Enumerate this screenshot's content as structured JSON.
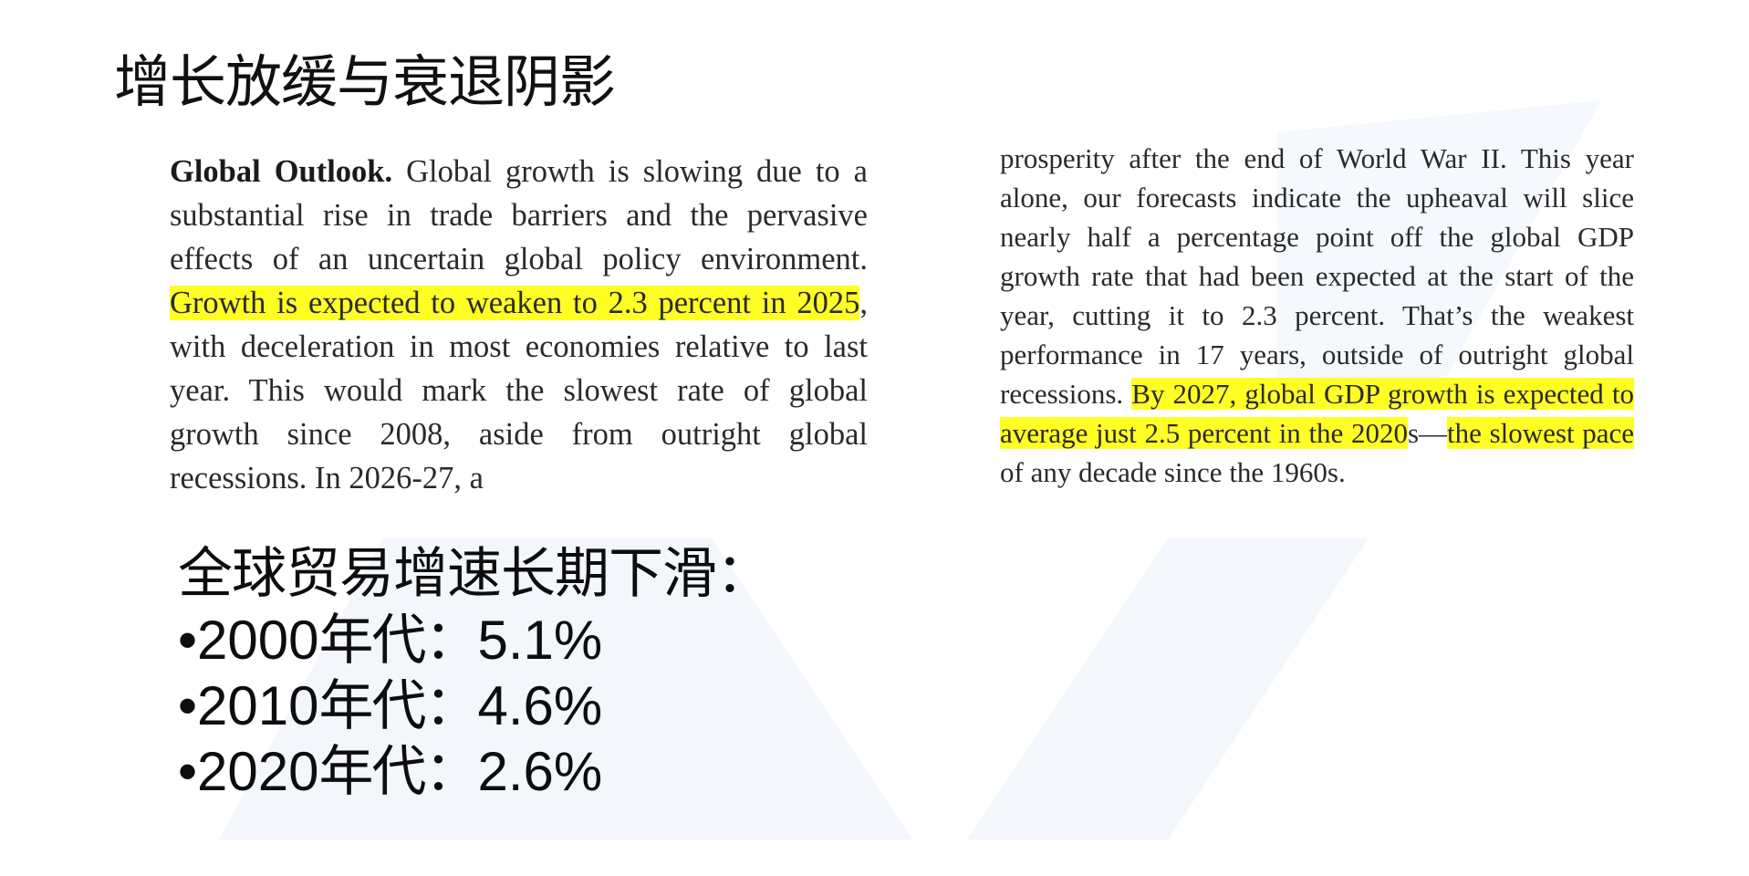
{
  "slide": {
    "title": "增长放缓与衰退阴影"
  },
  "excerpt_left": {
    "heading": "Global Outlook.",
    "text_1": " Global growth is slowing due to a substantial rise in trade barriers and the pervasive effects of an uncertain global policy environment. ",
    "highlight_1": "Growth is expected to weaken to 2.3 percent in 2025",
    "text_2": ", with deceleration in most economies relative to last year. This would mark the slowest rate of global growth since 2008, aside from outright global recessions. In 2026-27, a"
  },
  "excerpt_right": {
    "text_1": "prosperity after the end of World War II. This year alone, our forecasts indicate the upheaval will slice nearly half a percentage point off the global GDP growth rate that had been expected at the start of the year, cutting it to 2.3 percent. That’s the weakest performance in 17 years, outside of outright global recessions. ",
    "highlight_1": "By 2027, global GDP growth is expected to average just 2.5 percent in the 2020",
    "text_2": "s—",
    "highlight_2": "the slowest pace",
    "text_3": " of any decade since the 1960s."
  },
  "trade": {
    "heading": "全球贸易增速长期下滑：",
    "items": [
      {
        "bullet": "•",
        "decade": "2000",
        "suffix": "年代：",
        "value": "5.1%"
      },
      {
        "bullet": "•",
        "decade": "2010",
        "suffix": "年代：",
        "value": "4.6%"
      },
      {
        "bullet": "•",
        "decade": "2020",
        "suffix": "年代：",
        "value": "2.6%"
      }
    ]
  },
  "colors": {
    "highlight": "#ffff26",
    "watermark": "#f3f6fb"
  }
}
